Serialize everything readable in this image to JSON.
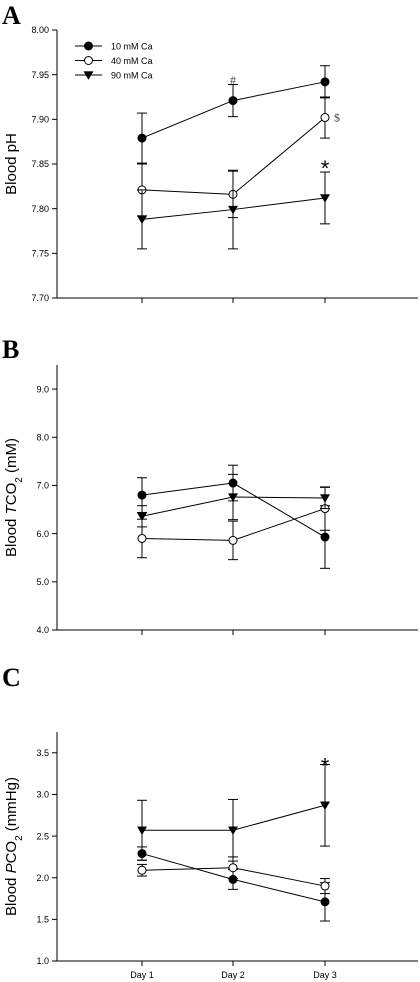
{
  "chart_data": [
    {
      "type": "line",
      "panel": "A",
      "ylabel": "Blood pH",
      "ylim": [
        7.7,
        8.0
      ],
      "yticks": [
        "7.70",
        "7.75",
        "7.80",
        "7.85",
        "7.90",
        "7.95",
        "8.00"
      ],
      "xticks": [],
      "categories": [
        "Day 1",
        "Day 2",
        "Day 3"
      ],
      "legend": {
        "placement": "top-left"
      },
      "series": [
        {
          "name": "10 mM Ca",
          "marker": "filled-circle",
          "values": [
            7.879,
            7.921,
            7.942
          ],
          "errors": [
            0.028,
            0.018,
            0.018
          ]
        },
        {
          "name": "40 mM Ca",
          "marker": "open-circle",
          "values": [
            7.821,
            7.816,
            7.902
          ],
          "errors": [
            0.029,
            0.026,
            0.023
          ]
        },
        {
          "name": "90 mM Ca",
          "marker": "filled-triangle-down",
          "values": [
            7.788,
            7.799,
            7.812
          ],
          "errors": [
            0.033,
            0.044,
            0.029
          ]
        }
      ],
      "annotations": [
        {
          "text": "#",
          "x": "Day 2",
          "y": 7.942
        },
        {
          "text": "$",
          "x": "Day 3",
          "y": 7.902,
          "side": "right"
        },
        {
          "text": "*",
          "x": "Day 3",
          "y": 7.852,
          "style": "star"
        }
      ]
    },
    {
      "type": "line",
      "panel": "B",
      "ylabel_parts": [
        "Blood ",
        "T",
        "CO",
        "2",
        " (mM)"
      ],
      "ylim": [
        4.0,
        9.5
      ],
      "yticks": [
        "4.0",
        "5.0",
        "6.0",
        "7.0",
        "8.0",
        "9.0"
      ],
      "xticks": [],
      "categories": [
        "Day 1",
        "Day 2",
        "Day 3"
      ],
      "series": [
        {
          "name": "10 mM Ca",
          "marker": "filled-circle",
          "values": [
            6.8,
            7.05,
            5.93
          ],
          "errors": [
            0.36,
            0.37,
            0.65
          ]
        },
        {
          "name": "40 mM Ca",
          "marker": "open-circle",
          "values": [
            5.9,
            5.86,
            6.52
          ],
          "errors": [
            0.4,
            0.4,
            0.45
          ]
        },
        {
          "name": "90 mM Ca",
          "marker": "filled-triangle-down",
          "values": [
            6.36,
            6.76,
            6.74
          ],
          "errors": [
            0.22,
            0.47,
            0.22
          ]
        }
      ],
      "annotations": []
    },
    {
      "type": "line",
      "panel": "C",
      "ylabel_parts": [
        "Blood ",
        "P",
        "CO",
        "2",
        " (mmHg)"
      ],
      "ylim": [
        1.0,
        3.75
      ],
      "yticks": [
        "1.0",
        "1.5",
        "2.0",
        "2.5",
        "3.0",
        "3.5"
      ],
      "xticks": [
        "Day 1",
        "Day 2",
        "Day 3"
      ],
      "categories": [
        "Day 1",
        "Day 2",
        "Day 3"
      ],
      "series": [
        {
          "name": "10 mM Ca",
          "marker": "filled-circle",
          "values": [
            2.29,
            1.98,
            1.71
          ],
          "errors": [
            0.08,
            0.12,
            0.23
          ]
        },
        {
          "name": "40 mM Ca",
          "marker": "open-circle",
          "values": [
            2.09,
            2.12,
            1.9
          ],
          "errors": [
            0.07,
            0.13,
            0.09
          ]
        },
        {
          "name": "90 mM Ca",
          "marker": "filled-triangle-down",
          "values": [
            2.57,
            2.57,
            2.87
          ],
          "errors": [
            0.36,
            0.37,
            0.49
          ]
        }
      ],
      "annotations": [
        {
          "text": "*",
          "x": "Day 3",
          "y": 3.42,
          "style": "star"
        }
      ]
    }
  ]
}
